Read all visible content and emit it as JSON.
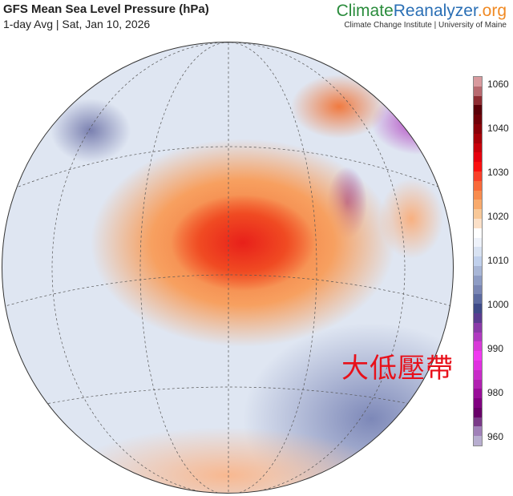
{
  "header": {
    "title": "GFS Mean Sea Level Pressure (hPa)",
    "subtitle": "1-day Avg | Sat, Jan 10, 2026",
    "brand_climate": "Climate",
    "brand_reanalyzer": "Reanalyzer",
    ".org": ".org",
    "brand_org": ".org",
    "institution": "Climate Change Institute | University of Maine"
  },
  "annotation": "大低壓帶",
  "colorbar": {
    "ticks": [
      "1060",
      "1040",
      "1030",
      "1020",
      "1010",
      "1000",
      "990",
      "980",
      "960"
    ],
    "colors": [
      "#d89a9e",
      "#b86a70",
      "#8e2c32",
      "#5a0008",
      "#700008",
      "#8a0008",
      "#a80008",
      "#c8000a",
      "#e6000e",
      "#fa1010",
      "#f8402a",
      "#f86a3a",
      "#f88c4e",
      "#f8aa6c",
      "#f8c898",
      "#fbe0c8",
      "#ffffff",
      "#eef2fa",
      "#d8e2f2",
      "#c0d0ec",
      "#a8b6d6",
      "#8e9cc4",
      "#7a86b4",
      "#5c6aa0",
      "#3e4a88",
      "#5a3c90",
      "#8a3aa8",
      "#b03ac0",
      "#d83ad8",
      "#f03af0",
      "#e030e0",
      "#c82cc8",
      "#b020b0",
      "#980c98",
      "#800080",
      "#680068",
      "#7a3a88",
      "#a080b8",
      "#b8aed0"
    ]
  }
}
